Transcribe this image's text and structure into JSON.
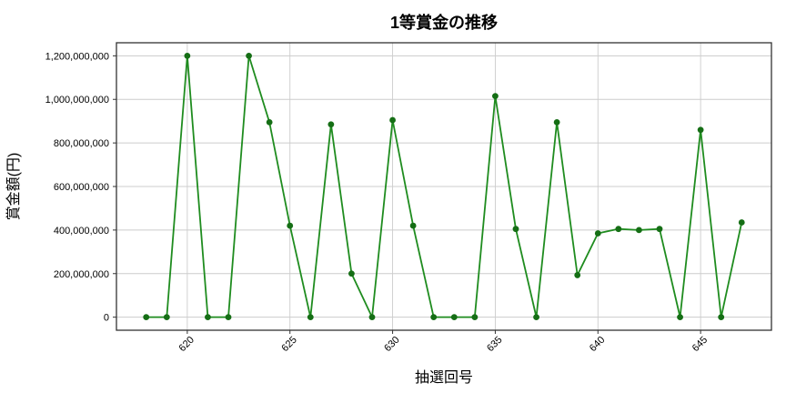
{
  "chart_data": {
    "type": "line",
    "title": "1等賞金の推移",
    "xlabel": "抽選回号",
    "ylabel": "賞金額(円)",
    "x": [
      618,
      619,
      620,
      621,
      622,
      623,
      624,
      625,
      626,
      627,
      628,
      629,
      630,
      631,
      632,
      633,
      634,
      635,
      636,
      637,
      638,
      639,
      640,
      641,
      642,
      643,
      644,
      645,
      646,
      647
    ],
    "y": [
      0,
      0,
      1200000000,
      0,
      0,
      1200000000,
      895000000,
      420000000,
      0,
      885000000,
      200000000,
      0,
      905000000,
      420000000,
      0,
      0,
      0,
      1015000000,
      405000000,
      0,
      895000000,
      193000000,
      385000000,
      405000000,
      400000000,
      405000000,
      0,
      860000000,
      0,
      435000000
    ],
    "xticks": [
      620,
      625,
      630,
      635,
      640,
      645
    ],
    "yticks": [
      0,
      200000000,
      400000000,
      600000000,
      800000000,
      1000000000,
      1200000000
    ],
    "xlim": [
      616.55,
      648.45
    ],
    "ylim": [
      -60000000,
      1260000000
    ],
    "grid": true,
    "legend": "none",
    "line_color": "#1f8c1f",
    "marker_color": "#156e15",
    "grid_color": "#cccccc",
    "frame_color": "#333333",
    "background_color": "#ffffff"
  }
}
